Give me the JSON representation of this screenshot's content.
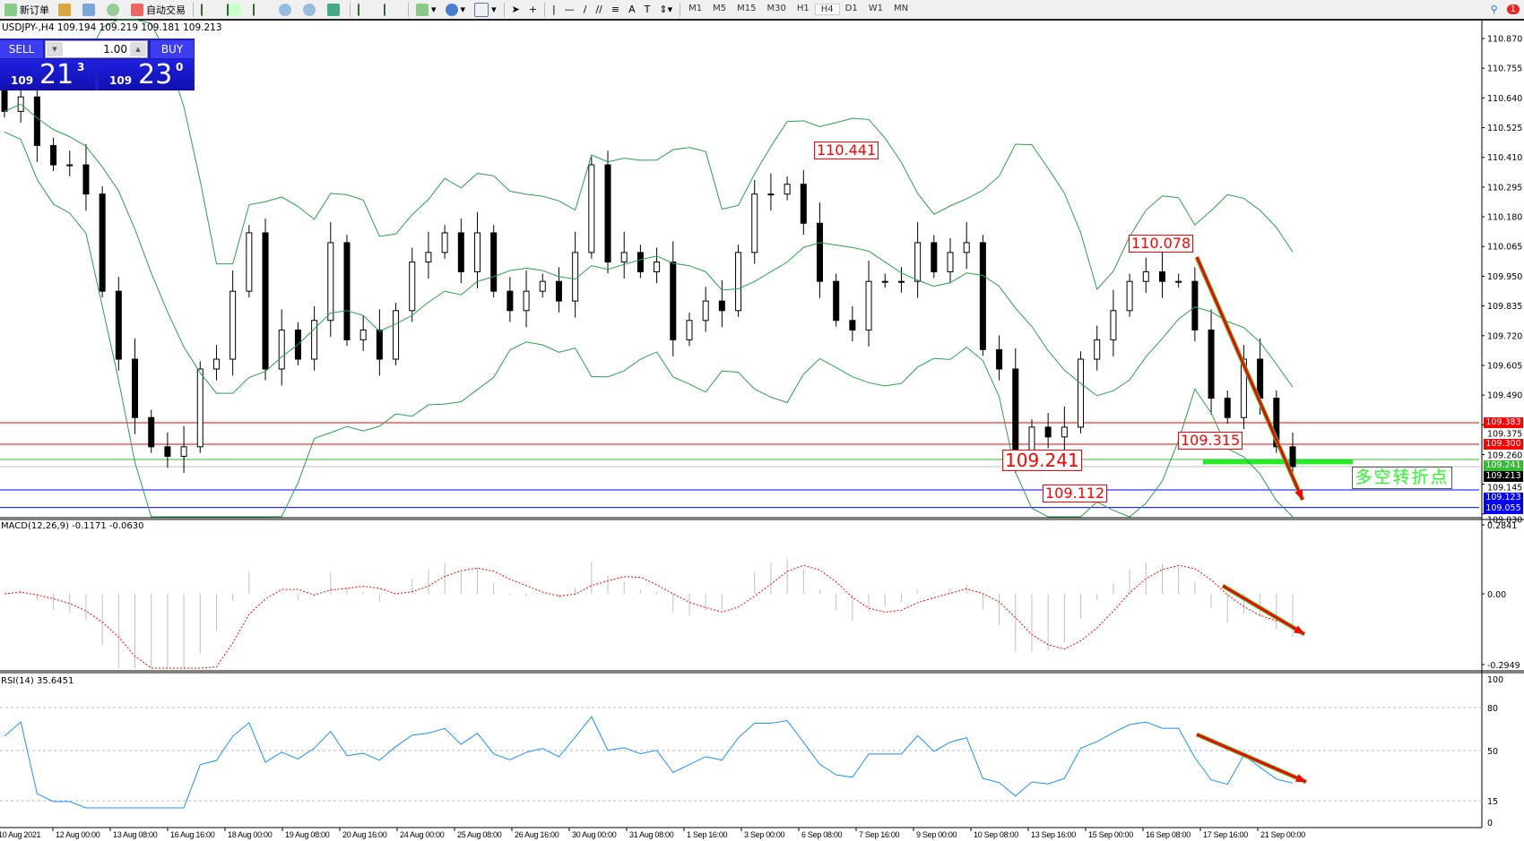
{
  "toolbar": {
    "new_order": "新订单",
    "auto_trading": "自动交易",
    "timeframes": [
      "M1",
      "M5",
      "M15",
      "M30",
      "H1",
      "H4",
      "D1",
      "W1",
      "MN"
    ],
    "active_timeframe": "H4",
    "notification_count": "1"
  },
  "header": {
    "text": "USDJPY-,H4  109.194 109.219 109.181 109.213"
  },
  "trade_panel": {
    "sell_label": "SELL",
    "buy_label": "BUY",
    "lot": "1.00",
    "sell_big": "109",
    "sell_main": "21",
    "sell_frac": "3",
    "buy_big": "109",
    "buy_main": "23",
    "buy_frac": "0"
  },
  "price_axis": [
    "110.870",
    "110.755",
    "110.640",
    "110.525",
    "110.410",
    "110.295",
    "110.180",
    "110.065",
    "109.950",
    "109.835",
    "109.720",
    "109.605",
    "109.490",
    "109.375",
    "109.260",
    "109.145",
    "109.030"
  ],
  "price_tags": [
    {
      "value": "109.383",
      "color": "#ff0000"
    },
    {
      "value": "109.300",
      "color": "#ff0000"
    },
    {
      "value": "109.241",
      "color": "#33bb33"
    },
    {
      "value": "109.213",
      "color": "#000000"
    },
    {
      "value": "109.123",
      "color": "#0000ff"
    },
    {
      "value": "109.055",
      "color": "#0000ff"
    }
  ],
  "annotations": [
    "110.441",
    "110.078",
    "109.315",
    "109.241",
    "109.112"
  ],
  "turning_point_text": "多空转折点",
  "candles_close": [
    110.588,
    110.644,
    110.456,
    110.381,
    110.381,
    110.268,
    109.892,
    109.629,
    109.403,
    109.29,
    109.253,
    109.29,
    109.591,
    109.629,
    109.892,
    110.118,
    109.591,
    109.742,
    109.629,
    109.779,
    110.08,
    109.704,
    109.742,
    109.629,
    109.817,
    110.005,
    110.042,
    110.118,
    109.967,
    110.118,
    109.892,
    109.817,
    109.892,
    109.93,
    109.854,
    110.042,
    110.381,
    110.005,
    110.042,
    109.967,
    110.005,
    109.704,
    109.779,
    109.854,
    109.817,
    110.042,
    110.268,
    110.268,
    110.306,
    110.155,
    109.93,
    109.779,
    109.742,
    109.93,
    109.93,
    109.93,
    110.08,
    109.967,
    110.042,
    110.08,
    109.666,
    109.591,
    109.253,
    109.366,
    109.328,
    109.366,
    109.629,
    109.704,
    109.817,
    109.93,
    109.967,
    109.93,
    109.93,
    109.742,
    109.478,
    109.403,
    109.629,
    109.478,
    109.29,
    109.213
  ],
  "colors": {
    "bollinger": "#2e9e4f",
    "macd_hist": "#c0c0c0",
    "macd_signal": "#ff0000",
    "rsi": "#1e90ff",
    "arrow": "#ff0000",
    "arrow_outline": "#33dd33"
  },
  "macd": {
    "label": "MACD(12,26,9) -0.1171 -0.0630",
    "axis": [
      "0.2841",
      "0.00",
      "-0.2949"
    ]
  },
  "rsi": {
    "label": "RSI(14) 35.6451",
    "axis": [
      "100",
      "80",
      "50",
      "15",
      "0"
    ]
  },
  "time_axis": [
    "10 Aug 2021",
    "12 Aug 00:00",
    "13 Aug 08:00",
    "16 Aug 16:00",
    "18 Aug 00:00",
    "19 Aug 08:00",
    "20 Aug 16:00",
    "24 Aug 00:00",
    "25 Aug 08:00",
    "26 Aug 16:00",
    "30 Aug 00:00",
    "31 Aug 08:00",
    "1 Sep 16:00",
    "3 Sep 00:00",
    "6 Sep 08:00",
    "7 Sep 16:00",
    "9 Sep 00:00",
    "10 Sep 08:00",
    "13 Sep 16:00",
    "15 Sep 00:00",
    "16 Sep 08:00",
    "17 Sep 16:00",
    "21 Sep 00:00"
  ]
}
